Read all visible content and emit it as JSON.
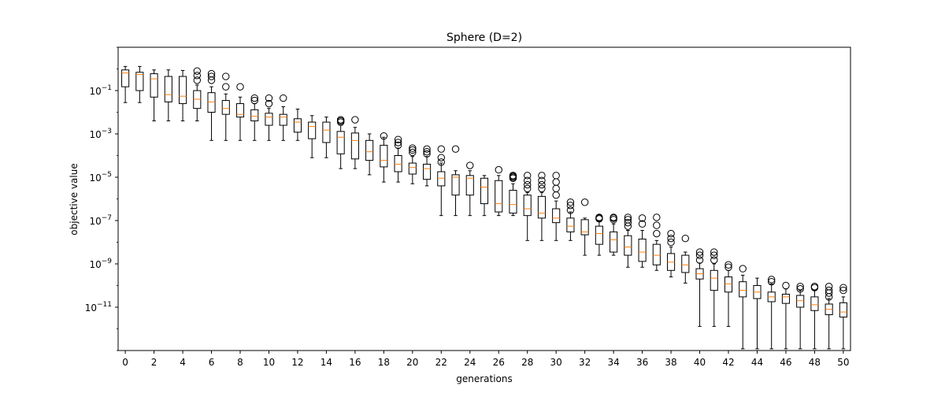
{
  "chart_data": {
    "type": "box",
    "title": "Sphere (D=2)",
    "xlabel": "generations",
    "ylabel": "objective value",
    "yscale": "log",
    "ylim": [
      1e-13,
      10.0
    ],
    "xlim": [
      -0.5,
      50.5
    ],
    "x_ticks": [
      0,
      2,
      4,
      6,
      8,
      10,
      12,
      14,
      16,
      18,
      20,
      22,
      24,
      26,
      28,
      30,
      32,
      34,
      36,
      38,
      40,
      42,
      44,
      46,
      48,
      50
    ],
    "y_ticks": [
      {
        "value": 1e-11,
        "base": "10",
        "exp": "−11"
      },
      {
        "value": 1e-09,
        "base": "10",
        "exp": "−9"
      },
      {
        "value": 1e-07,
        "base": "10",
        "exp": "−7"
      },
      {
        "value": 1e-05,
        "base": "10",
        "exp": "−5"
      },
      {
        "value": 0.001,
        "base": "10",
        "exp": "−3"
      },
      {
        "value": 0.1,
        "base": "10",
        "exp": "−1"
      }
    ],
    "colors": {
      "box": "#000000",
      "median": "#ff7f0e",
      "flier": "#000000",
      "axis": "#000000"
    },
    "boxes": [
      {
        "x": 0,
        "whislo": 0.028,
        "q1": 0.15,
        "med": 0.65,
        "q3": 0.9,
        "whishi": 1.3,
        "fliers": []
      },
      {
        "x": 1,
        "whislo": 0.028,
        "q1": 0.1,
        "med": 0.55,
        "q3": 0.7,
        "whishi": 1.3,
        "fliers": []
      },
      {
        "x": 2,
        "whislo": 0.004,
        "q1": 0.05,
        "med": 0.35,
        "q3": 0.6,
        "whishi": 0.9,
        "fliers": []
      },
      {
        "x": 3,
        "whislo": 0.004,
        "q1": 0.03,
        "med": 0.065,
        "q3": 0.45,
        "whishi": 0.9,
        "fliers": []
      },
      {
        "x": 4,
        "whislo": 0.004,
        "q1": 0.025,
        "med": 0.055,
        "q3": 0.45,
        "whishi": 0.85,
        "fliers": []
      },
      {
        "x": 5,
        "whislo": 0.004,
        "q1": 0.015,
        "med": 0.04,
        "q3": 0.1,
        "whishi": 0.18,
        "fliers": [
          0.3,
          0.5,
          0.8
        ]
      },
      {
        "x": 6,
        "whislo": 0.0005,
        "q1": 0.01,
        "med": 0.03,
        "q3": 0.08,
        "whishi": 0.15,
        "fliers": [
          0.3,
          0.45,
          0.6
        ]
      },
      {
        "x": 7,
        "whislo": 0.0005,
        "q1": 0.008,
        "med": 0.015,
        "q3": 0.035,
        "whishi": 0.07,
        "fliers": [
          0.15,
          0.45
        ]
      },
      {
        "x": 8,
        "whislo": 0.0005,
        "q1": 0.006,
        "med": 0.008,
        "q3": 0.025,
        "whishi": 0.05,
        "fliers": [
          0.15
        ]
      },
      {
        "x": 9,
        "whislo": 0.0005,
        "q1": 0.004,
        "med": 0.0065,
        "q3": 0.013,
        "whishi": 0.025,
        "fliers": [
          0.035,
          0.045
        ]
      },
      {
        "x": 10,
        "whislo": 0.0005,
        "q1": 0.0025,
        "med": 0.006,
        "q3": 0.009,
        "whishi": 0.015,
        "fliers": [
          0.025,
          0.045
        ]
      },
      {
        "x": 11,
        "whislo": 0.0005,
        "q1": 0.0025,
        "med": 0.006,
        "q3": 0.008,
        "whishi": 0.018,
        "fliers": [
          0.045
        ]
      },
      {
        "x": 12,
        "whislo": 0.0005,
        "q1": 0.0012,
        "med": 0.0035,
        "q3": 0.005,
        "whishi": 0.014,
        "fliers": []
      },
      {
        "x": 13,
        "whislo": 8e-05,
        "q1": 0.0006,
        "med": 0.0022,
        "q3": 0.0035,
        "whishi": 0.007,
        "fliers": []
      },
      {
        "x": 14,
        "whislo": 8e-05,
        "q1": 0.0004,
        "med": 0.0015,
        "q3": 0.0035,
        "whishi": 0.006,
        "fliers": []
      },
      {
        "x": 15,
        "whislo": 2.5e-05,
        "q1": 0.00012,
        "med": 0.0007,
        "q3": 0.0013,
        "whishi": 0.0025,
        "fliers": [
          0.0035,
          0.004,
          0.0045
        ]
      },
      {
        "x": 16,
        "whislo": 2.5e-05,
        "q1": 7e-05,
        "med": 0.0005,
        "q3": 0.0011,
        "whishi": 0.002,
        "fliers": [
          0.0045
        ]
      },
      {
        "x": 17,
        "whislo": 1.3e-05,
        "q1": 6e-05,
        "med": 0.00015,
        "q3": 0.0005,
        "whishi": 0.001,
        "fliers": []
      },
      {
        "x": 18,
        "whislo": 6e-06,
        "q1": 3e-05,
        "med": 6e-05,
        "q3": 0.0003,
        "whishi": 0.0007,
        "fliers": [
          0.0008
        ]
      },
      {
        "x": 19,
        "whislo": 6e-06,
        "q1": 1.8e-05,
        "med": 4e-05,
        "q3": 0.0001,
        "whishi": 0.00022,
        "fliers": [
          0.0003,
          0.0004,
          0.00055
        ]
      },
      {
        "x": 20,
        "whislo": 5e-06,
        "q1": 1.4e-05,
        "med": 2.8e-05,
        "q3": 4.5e-05,
        "whishi": 9e-05,
        "fliers": [
          0.00014,
          0.00018,
          0.00022
        ]
      },
      {
        "x": 21,
        "whislo": 4e-06,
        "q1": 8e-06,
        "med": 2.5e-05,
        "q3": 4e-05,
        "whishi": 9e-05,
        "fliers": [
          0.00012,
          0.00015,
          0.0002
        ]
      },
      {
        "x": 22,
        "whislo": 1.7e-07,
        "q1": 4e-06,
        "med": 9e-06,
        "q3": 1.8e-05,
        "whishi": 4.5e-05,
        "fliers": [
          5e-05,
          8e-05,
          0.0002
        ]
      },
      {
        "x": 23,
        "whislo": 1.7e-07,
        "q1": 1.5e-06,
        "med": 1e-05,
        "q3": 1.3e-05,
        "whishi": 2e-05,
        "fliers": [
          0.0002
        ]
      },
      {
        "x": 24,
        "whislo": 1.7e-07,
        "q1": 1.5e-06,
        "med": 9e-06,
        "q3": 1.2e-05,
        "whishi": 2e-05,
        "fliers": [
          3.5e-05
        ]
      },
      {
        "x": 25,
        "whislo": 1.7e-07,
        "q1": 6e-07,
        "med": 3.5e-06,
        "q3": 9e-06,
        "whishi": 1.2e-05,
        "fliers": []
      },
      {
        "x": 26,
        "whislo": 1.7e-07,
        "q1": 2.5e-07,
        "med": 6e-07,
        "q3": 7e-06,
        "whishi": 1.2e-05,
        "fliers": [
          2.2e-05
        ]
      },
      {
        "x": 27,
        "whislo": 1.7e-07,
        "q1": 2.2e-07,
        "med": 5.5e-07,
        "q3": 2.5e-06,
        "whishi": 5e-06,
        "fliers": [
          9e-06,
          1e-05,
          1.1e-05,
          1.2e-05
        ]
      },
      {
        "x": 28,
        "whislo": 1.2e-08,
        "q1": 1.7e-07,
        "med": 3.5e-07,
        "q3": 1.5e-06,
        "whishi": 2e-06,
        "fliers": [
          3e-06,
          4.5e-06,
          7e-06,
          1.2e-05
        ]
      },
      {
        "x": 29,
        "whislo": 1.2e-08,
        "q1": 1.3e-07,
        "med": 2.2e-07,
        "q3": 1.3e-06,
        "whishi": 2e-06,
        "fliers": [
          3e-06,
          4.5e-06,
          7e-06,
          1.2e-05
        ]
      },
      {
        "x": 30,
        "whislo": 1.2e-08,
        "q1": 8e-08,
        "med": 1.3e-07,
        "q3": 3.5e-07,
        "whishi": 8e-07,
        "fliers": [
          1.5e-06,
          3e-06,
          6e-06,
          1.2e-05
        ]
      },
      {
        "x": 31,
        "whislo": 1.2e-08,
        "q1": 3e-08,
        "med": 5.5e-08,
        "q3": 1.3e-07,
        "whishi": 2.5e-07,
        "fliers": [
          3e-07,
          5e-07,
          7e-07
        ]
      },
      {
        "x": 32,
        "whislo": 2.5e-09,
        "q1": 2.2e-08,
        "med": 3e-08,
        "q3": 1.1e-07,
        "whishi": 1.3e-07,
        "fliers": [
          7e-07
        ]
      },
      {
        "x": 33,
        "whislo": 2.5e-09,
        "q1": 8e-09,
        "med": 2.5e-08,
        "q3": 5.5e-08,
        "whishi": 1e-07,
        "fliers": [
          1.2e-07,
          1.3e-07,
          1.4e-07
        ]
      },
      {
        "x": 34,
        "whislo": 2.5e-09,
        "q1": 3.5e-09,
        "med": 1.3e-08,
        "q3": 3e-08,
        "whishi": 7e-08,
        "fliers": [
          1.1e-07,
          1.3e-07,
          1.4e-07
        ]
      },
      {
        "x": 35,
        "whislo": 7e-10,
        "q1": 2.5e-09,
        "med": 6e-09,
        "q3": 2e-08,
        "whishi": 3.5e-08,
        "fliers": [
          5.5e-08,
          8e-08,
          1.1e-07,
          1.4e-07
        ]
      },
      {
        "x": 36,
        "whislo": 7e-10,
        "q1": 1.3e-09,
        "med": 3.5e-09,
        "q3": 1.4e-08,
        "whishi": 3.5e-08,
        "fliers": [
          7e-08,
          1.3e-07
        ]
      },
      {
        "x": 37,
        "whislo": 5e-10,
        "q1": 9e-10,
        "med": 2.5e-09,
        "q3": 8e-09,
        "whishi": 1.2e-08,
        "fliers": [
          2.5e-08,
          6e-08,
          1.4e-07
        ]
      },
      {
        "x": 38,
        "whislo": 2.5e-10,
        "q1": 5e-10,
        "med": 1.2e-09,
        "q3": 3e-09,
        "whishi": 6e-09,
        "fliers": [
          1e-08,
          1.5e-08,
          2.5e-08
        ]
      },
      {
        "x": 39,
        "whislo": 1.3e-10,
        "q1": 4e-10,
        "med": 9e-10,
        "q3": 2.5e-09,
        "whishi": 3.5e-09,
        "fliers": [
          1.5e-08
        ]
      },
      {
        "x": 40,
        "whislo": 1.3e-12,
        "q1": 2e-10,
        "med": 3.5e-10,
        "q3": 6e-10,
        "whishi": 1.1e-09,
        "fliers": [
          1.5e-09,
          2.5e-09,
          3.5e-09
        ]
      },
      {
        "x": 41,
        "whislo": 1.3e-12,
        "q1": 6e-11,
        "med": 2.2e-10,
        "q3": 5e-10,
        "whishi": 1e-09,
        "fliers": [
          1.5e-09,
          2.5e-09,
          3.5e-09
        ]
      },
      {
        "x": 42,
        "whislo": 1.3e-12,
        "q1": 5e-11,
        "med": 1.2e-10,
        "q3": 2.5e-10,
        "whishi": 5e-10,
        "fliers": [
          7e-10,
          9e-10
        ]
      },
      {
        "x": 43,
        "whislo": 1.2e-13,
        "q1": 3e-11,
        "med": 6e-11,
        "q3": 1.5e-10,
        "whishi": 3e-10,
        "fliers": [
          6e-10
        ]
      },
      {
        "x": 44,
        "whislo": 1.2e-13,
        "q1": 2.5e-11,
        "med": 5e-11,
        "q3": 1e-10,
        "whishi": 2.2e-10,
        "fliers": []
      },
      {
        "x": 45,
        "whislo": 1.2e-13,
        "q1": 1.8e-11,
        "med": 3e-11,
        "q3": 5e-11,
        "whishi": 1.2e-10,
        "fliers": [
          1.5e-10,
          1.9e-10
        ]
      },
      {
        "x": 46,
        "whislo": 1.2e-13,
        "q1": 1.5e-11,
        "med": 3e-11,
        "q3": 4e-11,
        "whishi": 7e-11,
        "fliers": [
          1e-10
        ]
      },
      {
        "x": 47,
        "whislo": 1.2e-13,
        "q1": 1e-11,
        "med": 2e-11,
        "q3": 3.5e-11,
        "whishi": 6e-11,
        "fliers": [
          7e-11,
          9e-11
        ]
      },
      {
        "x": 48,
        "whislo": 1.2e-13,
        "q1": 7e-12,
        "med": 1.3e-11,
        "q3": 3e-11,
        "whishi": 6e-11,
        "fliers": [
          8e-11,
          9e-11
        ]
      },
      {
        "x": 49,
        "whislo": 1.2e-13,
        "q1": 4.5e-12,
        "med": 8e-12,
        "q3": 1.4e-11,
        "whishi": 2.5e-11,
        "fliers": [
          3e-11,
          4.5e-11,
          6e-11,
          9e-11
        ]
      },
      {
        "x": 50,
        "whislo": 1.2e-13,
        "q1": 3.5e-12,
        "med": 6e-12,
        "q3": 1.6e-11,
        "whishi": 3e-11,
        "fliers": [
          6e-11,
          8e-11
        ]
      }
    ]
  }
}
